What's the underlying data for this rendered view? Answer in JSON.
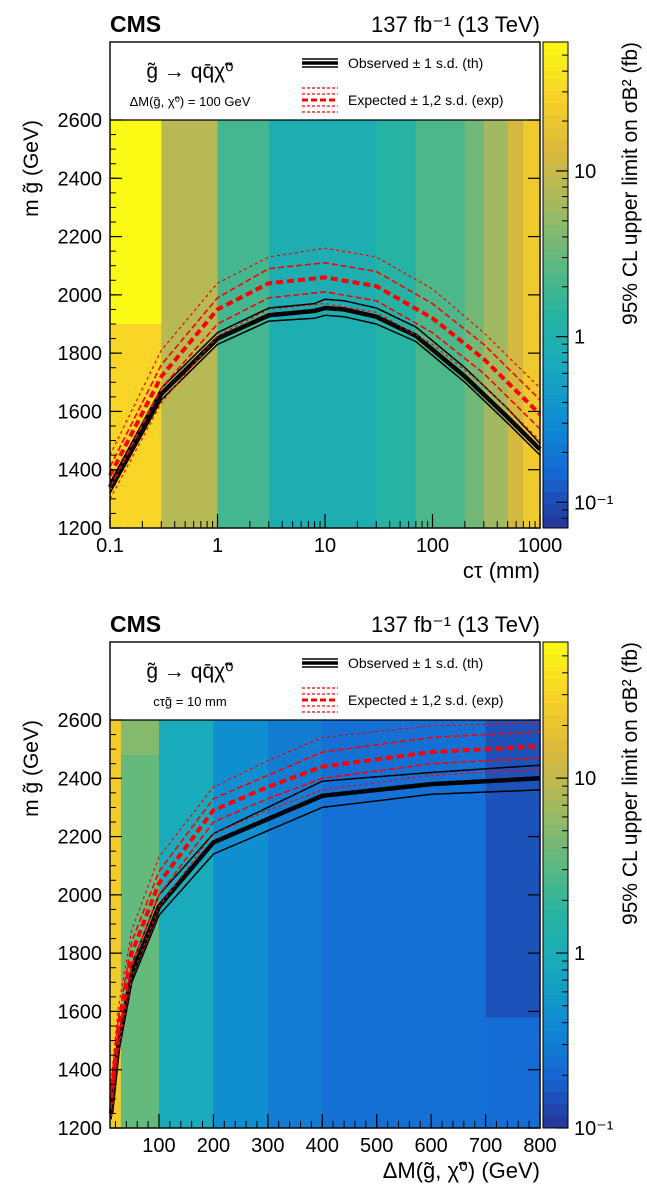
{
  "chart_data": [
    {
      "type": "heatmap",
      "experiment": "CMS",
      "luminosity": "137 fb⁻¹ (13 TeV)",
      "process": "g̃ → qq̄χ̃⁰",
      "condition": "ΔM(g̃, χ̃⁰) = 100 GeV",
      "legend": [
        {
          "label": "Observed ± 1 s.d. (th)",
          "color": "#000000"
        },
        {
          "label": "Expected ± 1,2 s.d. (exp)",
          "color": "#ff0000"
        }
      ],
      "xlabel": "cτ (mm)",
      "ylabel": "m g̃ (GeV)",
      "zlabel": "95% CL upper limit on σB² (fb)",
      "x_scale": "log",
      "xlim": [
        0.1,
        1000
      ],
      "ylim": [
        1200,
        2600
      ],
      "zlim": [
        0.07,
        60
      ],
      "z_scale": "log",
      "x_ticks": [
        "0.1",
        "1",
        "10",
        "100",
        "1000"
      ],
      "y_ticks": [
        "1200",
        "1400",
        "1600",
        "1800",
        "2000",
        "2200",
        "2400",
        "2600"
      ],
      "z_ticks": [
        "10⁻¹",
        "1",
        "10"
      ],
      "x_edges": [
        0.1,
        0.3,
        1,
        3,
        10,
        30,
        70,
        200,
        300,
        500,
        700,
        1000
      ],
      "cells": [
        {
          "x0": 0.1,
          "x1": 0.3,
          "y0": 1900,
          "y1": 2600,
          "z": 60
        },
        {
          "x0": 0.1,
          "x1": 0.3,
          "y0": 1200,
          "y1": 1900,
          "z": 30
        },
        {
          "x0": 0.3,
          "x1": 1,
          "y0": 1200,
          "y1": 2600,
          "z": 8
        },
        {
          "x0": 1,
          "x1": 3,
          "y0": 1200,
          "y1": 2600,
          "z": 2.0
        },
        {
          "x0": 3,
          "x1": 30,
          "y0": 1200,
          "y1": 2600,
          "z": 0.9
        },
        {
          "x0": 30,
          "x1": 70,
          "y0": 1200,
          "y1": 2600,
          "z": 1.3
        },
        {
          "x0": 70,
          "x1": 200,
          "y0": 1200,
          "y1": 2600,
          "z": 2.2
        },
        {
          "x0": 200,
          "x1": 300,
          "y0": 1200,
          "y1": 2600,
          "z": 3.5
        },
        {
          "x0": 300,
          "x1": 500,
          "y0": 1200,
          "y1": 2600,
          "z": 6
        },
        {
          "x0": 500,
          "x1": 700,
          "y0": 1200,
          "y1": 2600,
          "z": 12
        },
        {
          "x0": 700,
          "x1": 1000,
          "y0": 1200,
          "y1": 2600,
          "z": 22
        }
      ],
      "series": [
        {
          "name": "Observed",
          "style": "observed",
          "x": [
            0.1,
            0.3,
            1,
            3,
            8,
            10,
            15,
            30,
            70,
            200,
            500,
            1000
          ],
          "y": [
            1340,
            1660,
            1850,
            1930,
            1945,
            1955,
            1950,
            1925,
            1860,
            1720,
            1580,
            1470
          ]
        },
        {
          "name": "Observed +1 s.d.",
          "style": "theory",
          "x": [
            0.1,
            0.3,
            1,
            3,
            8,
            10,
            15,
            30,
            70,
            200,
            500,
            1000
          ],
          "y": [
            1355,
            1680,
            1870,
            1955,
            1970,
            1985,
            1980,
            1955,
            1890,
            1750,
            1610,
            1490
          ]
        },
        {
          "name": "Observed -1 s.d.",
          "style": "theory",
          "x": [
            0.1,
            0.3,
            1,
            3,
            8,
            10,
            15,
            30,
            70,
            200,
            500,
            1000
          ],
          "y": [
            1320,
            1640,
            1830,
            1910,
            1920,
            1930,
            1925,
            1900,
            1840,
            1700,
            1560,
            1450
          ]
        },
        {
          "name": "Expected",
          "style": "expected",
          "x": [
            0.1,
            0.3,
            1,
            3,
            10,
            30,
            100,
            300,
            1000
          ],
          "y": [
            1380,
            1720,
            1950,
            2040,
            2060,
            2030,
            1920,
            1780,
            1590
          ]
        },
        {
          "name": "Expected +1 s.d.",
          "style": "exp1",
          "x": [
            0.1,
            0.3,
            1,
            3,
            10,
            30,
            100,
            300,
            1000
          ],
          "y": [
            1410,
            1760,
            1990,
            2090,
            2110,
            2080,
            1970,
            1830,
            1640
          ]
        },
        {
          "name": "Expected -1 s.d.",
          "style": "exp1",
          "x": [
            0.1,
            0.3,
            1,
            3,
            10,
            30,
            100,
            300,
            1000
          ],
          "y": [
            1340,
            1680,
            1900,
            1990,
            2010,
            1980,
            1870,
            1730,
            1540
          ]
        },
        {
          "name": "Expected +2 s.d.",
          "style": "exp2",
          "x": [
            0.1,
            0.3,
            1,
            3,
            10,
            30,
            100,
            300,
            1000
          ],
          "y": [
            1450,
            1810,
            2040,
            2130,
            2160,
            2130,
            2020,
            1870,
            1680
          ]
        },
        {
          "name": "Expected -2 s.d.",
          "style": "exp2",
          "x": [
            0.1,
            0.3,
            1,
            3,
            10,
            30,
            100,
            300,
            1000
          ],
          "y": [
            1300,
            1630,
            1860,
            1950,
            1970,
            1940,
            1830,
            1690,
            1500
          ]
        }
      ]
    },
    {
      "type": "heatmap",
      "experiment": "CMS",
      "luminosity": "137 fb⁻¹ (13 TeV)",
      "process": "g̃ → qq̄χ̃⁰",
      "condition": "cτg̃ = 10 mm",
      "legend": [
        {
          "label": "Observed ± 1 s.d. (th)",
          "color": "#000000"
        },
        {
          "label": "Expected ± 1,2 s.d. (exp)",
          "color": "#ff0000"
        }
      ],
      "xlabel": "ΔM(g̃, χ̃⁰) (GeV)",
      "ylabel": "m g̃ (GeV)",
      "zlabel": "95% CL upper limit on σB² (fb)",
      "x_scale": "linear",
      "xlim": [
        10,
        800
      ],
      "ylim": [
        1200,
        2600
      ],
      "zlim": [
        0.1,
        60
      ],
      "z_scale": "log",
      "x_ticks": [
        "100",
        "200",
        "300",
        "400",
        "500",
        "600",
        "700",
        "800"
      ],
      "y_ticks": [
        "1200",
        "1400",
        "1600",
        "1800",
        "2000",
        "2200",
        "2400",
        "2600"
      ],
      "z_ticks": [
        "10⁻¹",
        "1",
        "10"
      ],
      "cells": [
        {
          "x0": 10,
          "x1": 30,
          "y0": 1200,
          "y1": 2600,
          "z": 25
        },
        {
          "x0": 30,
          "x1": 100,
          "y0": 2480,
          "y1": 2600,
          "z": 5
        },
        {
          "x0": 30,
          "x1": 100,
          "y0": 1200,
          "y1": 2480,
          "z": 3.5
        },
        {
          "x0": 100,
          "x1": 200,
          "y0": 1200,
          "y1": 2600,
          "z": 0.9
        },
        {
          "x0": 200,
          "x1": 300,
          "y0": 1200,
          "y1": 2600,
          "z": 0.45
        },
        {
          "x0": 300,
          "x1": 400,
          "y0": 1200,
          "y1": 2600,
          "z": 0.3
        },
        {
          "x0": 400,
          "x1": 700,
          "y0": 1200,
          "y1": 2600,
          "z": 0.24
        },
        {
          "x0": 700,
          "x1": 800,
          "y0": 1580,
          "y1": 2600,
          "z": 0.15
        },
        {
          "x0": 700,
          "x1": 800,
          "y0": 1200,
          "y1": 1580,
          "z": 0.22
        }
      ],
      "series": [
        {
          "name": "Observed",
          "style": "observed",
          "x": [
            12,
            25,
            50,
            100,
            200,
            300,
            400,
            600,
            800
          ],
          "y": [
            1250,
            1480,
            1730,
            1960,
            2180,
            2260,
            2340,
            2380,
            2400
          ]
        },
        {
          "name": "Observed +1 s.d.",
          "style": "theory",
          "x": [
            12,
            25,
            50,
            100,
            200,
            300,
            400,
            600,
            800
          ],
          "y": [
            1270,
            1510,
            1760,
            2000,
            2210,
            2300,
            2390,
            2420,
            2445
          ]
        },
        {
          "name": "Observed -1 s.d.",
          "style": "theory",
          "x": [
            12,
            25,
            50,
            100,
            200,
            300,
            400,
            600,
            800
          ],
          "y": [
            1230,
            1450,
            1700,
            1930,
            2140,
            2220,
            2300,
            2345,
            2360
          ]
        },
        {
          "name": "Expected",
          "style": "expected",
          "x": [
            12,
            25,
            50,
            100,
            200,
            300,
            400,
            600,
            800
          ],
          "y": [
            1300,
            1540,
            1800,
            2040,
            2290,
            2370,
            2440,
            2490,
            2510
          ]
        },
        {
          "name": "Expected +1 s.d.",
          "style": "exp1",
          "x": [
            12,
            25,
            50,
            100,
            200,
            300,
            400,
            600,
            800
          ],
          "y": [
            1330,
            1570,
            1840,
            2080,
            2330,
            2410,
            2490,
            2540,
            2560
          ]
        },
        {
          "name": "Expected -1 s.d.",
          "style": "exp1",
          "x": [
            12,
            25,
            50,
            100,
            200,
            300,
            400,
            600,
            800
          ],
          "y": [
            1270,
            1500,
            1760,
            2000,
            2250,
            2330,
            2400,
            2450,
            2470
          ]
        },
        {
          "name": "Expected +2 s.d.",
          "style": "exp2",
          "x": [
            12,
            25,
            50,
            100,
            200,
            300,
            400,
            600,
            800
          ],
          "y": [
            1360,
            1610,
            1880,
            2130,
            2370,
            2460,
            2540,
            2580,
            2590
          ]
        },
        {
          "name": "Expected -2 s.d.",
          "style": "exp2",
          "x": [
            12,
            25,
            50,
            100,
            200,
            300,
            400,
            600,
            800
          ],
          "y": [
            1240,
            1470,
            1720,
            1960,
            2210,
            2290,
            2360,
            2410,
            2430
          ]
        }
      ]
    }
  ]
}
